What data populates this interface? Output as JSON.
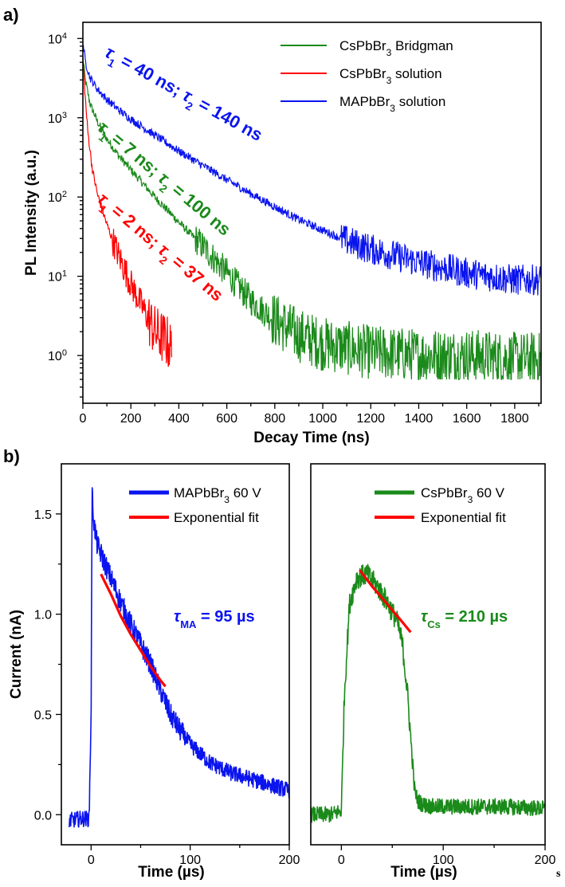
{
  "chart_data": [
    {
      "type": "line",
      "panel_label": "a)",
      "xlabel": "Decay Time (ns)",
      "ylabel": "PL Intensity (a.u.)",
      "xlim": [
        0,
        1910
      ],
      "ylim": [
        0.25,
        16000
      ],
      "yscale": "log",
      "xticks": [
        0,
        200,
        400,
        600,
        800,
        1000,
        1200,
        1400,
        1600,
        1800
      ],
      "yticks": [
        1,
        10,
        100,
        1000,
        10000
      ],
      "ytick_labels": [
        {
          "mant": "10",
          "exp": "0"
        },
        {
          "mant": "10",
          "exp": "1"
        },
        {
          "mant": "10",
          "exp": "2"
        },
        {
          "mant": "10",
          "exp": "3"
        },
        {
          "mant": "10",
          "exp": "4"
        }
      ],
      "legend_position": "top-right",
      "series": [
        {
          "name": "CsPbBr3 Bridgman",
          "legend_main": "CsPbBr",
          "legend_sub": "3",
          "legend_rest": " Bridgman",
          "color": "#1a8a1a",
          "x": [
            0,
            10,
            30,
            60,
            100,
            150,
            200,
            300,
            400,
            500,
            600,
            700,
            800,
            900,
            1000,
            1200,
            1400,
            1600,
            1800,
            1910
          ],
          "y": [
            6000,
            3000,
            1500,
            900,
            540,
            330,
            220,
            100,
            48,
            24,
            11,
            5,
            2.8,
            1.8,
            1.4,
            1.1,
            1.0,
            1.0,
            0.9,
            0.9
          ]
        },
        {
          "name": "CsPbBr3 solution",
          "legend_main": "CsPbBr",
          "legend_sub": "3",
          "legend_rest": " solution",
          "color": "#ff0000",
          "x": [
            0,
            10,
            20,
            40,
            60,
            100,
            150,
            200,
            250,
            300,
            350,
            370
          ],
          "y": [
            5500,
            1800,
            700,
            220,
            110,
            45,
            18,
            8,
            4,
            2,
            1.5,
            1.2
          ]
        },
        {
          "name": "MAPbBr3 solution",
          "legend_main": "MAPbBr",
          "legend_sub": "3",
          "legend_rest": " solution",
          "color": "#0a14ee",
          "x": [
            0,
            10,
            30,
            60,
            100,
            150,
            200,
            300,
            400,
            500,
            600,
            700,
            800,
            900,
            1000,
            1100,
            1200,
            1400,
            1600,
            1800,
            1910
          ],
          "y": [
            9000,
            5200,
            3200,
            2300,
            1700,
            1250,
            960,
            600,
            380,
            250,
            165,
            110,
            75,
            52,
            38,
            28,
            22,
            15,
            11,
            9,
            9
          ]
        }
      ],
      "annotations": [
        {
          "t1": "1",
          "t1v": " = 40 ns; ",
          "t2": "2",
          "t2v": " = 140 ns",
          "color": "#0a14ee"
        },
        {
          "t1": "1",
          "t1v": " = 7 ns; ",
          "t2": "2",
          "t2v": " = 100 ns",
          "color": "#1a8a1a"
        },
        {
          "t1": "1",
          "t1v": " = 2 ns; ",
          "t2": "2",
          "t2v": " = 37 ns",
          "color": "#ff0000"
        }
      ]
    },
    {
      "type": "line",
      "panel_label": "b)",
      "xlabel": "Time (µs)",
      "ylabel": "Current (nA)",
      "xlim": [
        -30,
        200
      ],
      "ylim": [
        -0.15,
        1.75
      ],
      "xticks": [
        0,
        100,
        200
      ],
      "yticks": [
        0.0,
        0.5,
        1.0,
        1.5
      ],
      "ytick_labels": [
        "0.0",
        "0.5",
        "1.0",
        "1.5"
      ],
      "legend_position": "top-right",
      "series": [
        {
          "name": "MAPbBr3 60 V",
          "legend_main": "MAPbBr",
          "legend_sub": "3",
          "legend_rest": " 60 V",
          "color": "#0a14ee",
          "x": [
            -22,
            -10,
            -2,
            0,
            1,
            3,
            6,
            10,
            20,
            30,
            40,
            50,
            60,
            70,
            80,
            90,
            100,
            120,
            140,
            160,
            180,
            200
          ],
          "y": [
            -0.03,
            -0.02,
            -0.02,
            0.5,
            1.6,
            1.45,
            1.35,
            1.3,
            1.18,
            1.06,
            0.95,
            0.85,
            0.75,
            0.62,
            0.5,
            0.42,
            0.35,
            0.26,
            0.21,
            0.18,
            0.15,
            0.12
          ]
        },
        {
          "name": "Exponential fit",
          "legend_main": "Exponential fit",
          "legend_sub": "",
          "legend_rest": "",
          "color": "#ff0000",
          "x": [
            10,
            20,
            30,
            40,
            50,
            60,
            70,
            75
          ],
          "y": [
            1.2,
            1.1,
            0.99,
            0.9,
            0.82,
            0.74,
            0.67,
            0.64
          ]
        }
      ],
      "annotation": {
        "sym": "τ",
        "sub": "MA",
        "rest": " = 95 µs",
        "color": "#0a14ee"
      }
    },
    {
      "type": "line",
      "xlabel": "Time (µs)",
      "xlim": [
        -30,
        200
      ],
      "ylim": [
        -0.15,
        1.75
      ],
      "xticks": [
        0,
        100,
        200
      ],
      "legend_position": "top-right",
      "series": [
        {
          "name": "CsPbBr3 60 V",
          "legend_main": "CsPbBr",
          "legend_sub": "3",
          "legend_rest": " 60 V",
          "color": "#1a8a1a",
          "x": [
            -30,
            -10,
            0,
            3,
            8,
            15,
            25,
            35,
            45,
            55,
            60,
            65,
            70,
            72,
            75,
            80,
            90,
            100,
            130,
            160,
            200
          ],
          "y": [
            0.0,
            0.0,
            0.02,
            0.6,
            1.05,
            1.18,
            1.2,
            1.14,
            1.06,
            0.96,
            0.85,
            0.6,
            0.25,
            0.12,
            0.07,
            0.05,
            0.04,
            0.04,
            0.04,
            0.04,
            0.03
          ]
        },
        {
          "name": "Exponential fit",
          "legend_main": "Exponential fit",
          "legend_sub": "",
          "legend_rest": "",
          "color": "#ff0000",
          "x": [
            18,
            30,
            40,
            50,
            60,
            68
          ],
          "y": [
            1.22,
            1.14,
            1.08,
            1.02,
            0.96,
            0.91
          ]
        }
      ],
      "annotation": {
        "sym": "τ",
        "sub": "Cs",
        "rest": " = 210 µs",
        "color": "#1a8a1a"
      }
    }
  ],
  "footer_mark": "s"
}
